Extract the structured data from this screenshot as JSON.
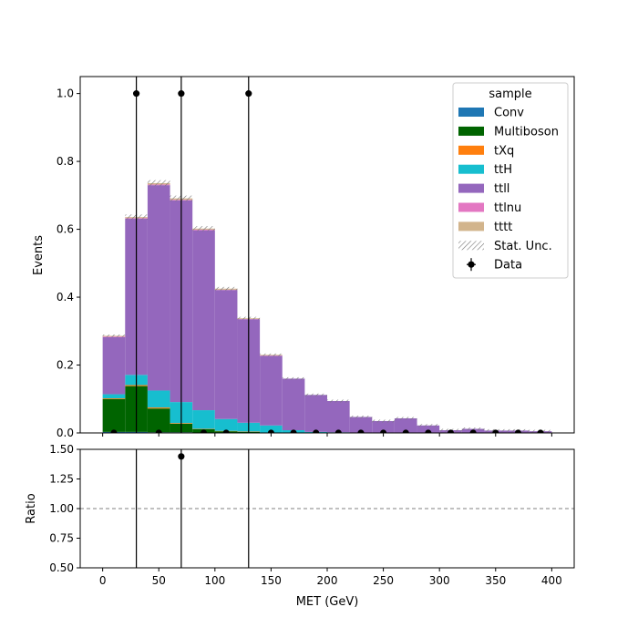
{
  "chart_data": {
    "type": "bar",
    "stacked": true,
    "bin_edges": [
      0,
      20,
      40,
      60,
      80,
      100,
      120,
      140,
      160,
      180,
      200,
      220,
      240,
      260,
      280,
      300,
      320,
      340,
      360,
      380,
      400
    ],
    "xlabel": "MET (GeV)",
    "xlim": [
      -20,
      420
    ],
    "x_ticks": [
      0,
      50,
      100,
      150,
      200,
      250,
      300,
      350,
      400
    ],
    "main_panel": {
      "ylabel": "Events",
      "ylim": [
        0,
        1.05
      ],
      "y_ticks": [
        "0.0",
        "0.2",
        "0.4",
        "0.6",
        "0.8",
        "1.0"
      ],
      "series": [
        {
          "name": "Conv",
          "color": "#1f77b4",
          "values": [
            0.003,
            0.003,
            0.002,
            0.002,
            0.001,
            0.001,
            0.001,
            0.0,
            0.0,
            0.0,
            0.0,
            0.0,
            0.0,
            0.0,
            0.0,
            0.0,
            0.0,
            0.0,
            0.0,
            0.0
          ]
        },
        {
          "name": "Multiboson",
          "color": "#006400",
          "values": [
            0.097,
            0.135,
            0.07,
            0.025,
            0.01,
            0.004,
            0.002,
            0.0,
            0.0,
            0.0,
            0.0,
            0.0,
            0.0,
            0.0,
            0.0,
            0.0,
            0.0,
            0.0,
            0.0,
            0.0
          ]
        },
        {
          "name": "tXq",
          "color": "#ff7f0e",
          "values": [
            0.002,
            0.003,
            0.003,
            0.002,
            0.001,
            0.001,
            0.001,
            0.0,
            0.0,
            0.0,
            0.0,
            0.0,
            0.0,
            0.0,
            0.0,
            0.0,
            0.0,
            0.0,
            0.0,
            0.0
          ]
        },
        {
          "name": "ttH",
          "color": "#17becf",
          "values": [
            0.012,
            0.03,
            0.05,
            0.062,
            0.055,
            0.035,
            0.026,
            0.022,
            0.008,
            0.003,
            0.002,
            0.0,
            0.0,
            0.0,
            0.0,
            0.0,
            0.0,
            0.0,
            0.0,
            0.0
          ]
        },
        {
          "name": "ttll",
          "color": "#9467bd",
          "values": [
            0.168,
            0.46,
            0.605,
            0.594,
            0.53,
            0.38,
            0.305,
            0.205,
            0.152,
            0.109,
            0.092,
            0.047,
            0.035,
            0.043,
            0.022,
            0.008,
            0.012,
            0.007,
            0.007,
            0.005
          ]
        },
        {
          "name": "ttlnu",
          "color": "#e377c2",
          "values": [
            0.002,
            0.002,
            0.002,
            0.002,
            0.002,
            0.001,
            0.001,
            0.001,
            0.0,
            0.0,
            0.0,
            0.0,
            0.0,
            0.0,
            0.0,
            0.0,
            0.0,
            0.0,
            0.0,
            0.0
          ]
        },
        {
          "name": "tttt",
          "color": "#d2b48c",
          "values": [
            0.002,
            0.003,
            0.004,
            0.004,
            0.003,
            0.003,
            0.002,
            0.002,
            0.0,
            0.0,
            0.0,
            0.0,
            0.0,
            0.0,
            0.0,
            0.0,
            0.0,
            0.0,
            0.0,
            0.0
          ]
        }
      ],
      "data": {
        "name": "Data",
        "x": [
          10,
          30,
          50,
          70,
          90,
          110,
          130,
          150,
          170,
          190,
          210,
          230,
          250,
          270,
          290,
          310,
          330,
          350,
          370,
          390
        ],
        "y": [
          0,
          1,
          0,
          1,
          0,
          0,
          1,
          0,
          0,
          0,
          0,
          0,
          0,
          0,
          0,
          0,
          0,
          0,
          0,
          0
        ]
      },
      "uncertainty_label": "Stat. Unc.",
      "legend": {
        "title": "sample",
        "position": "top-right"
      }
    },
    "ratio_panel": {
      "ylabel": "Ratio",
      "ylim": [
        0.5,
        1.5
      ],
      "y_ticks": [
        "0.50",
        "0.75",
        "1.00",
        "1.25",
        "1.50"
      ],
      "reference_line": 1.0,
      "points": [
        {
          "x": 70,
          "y": 1.44
        }
      ],
      "error_x": [
        30,
        70,
        130
      ]
    }
  }
}
